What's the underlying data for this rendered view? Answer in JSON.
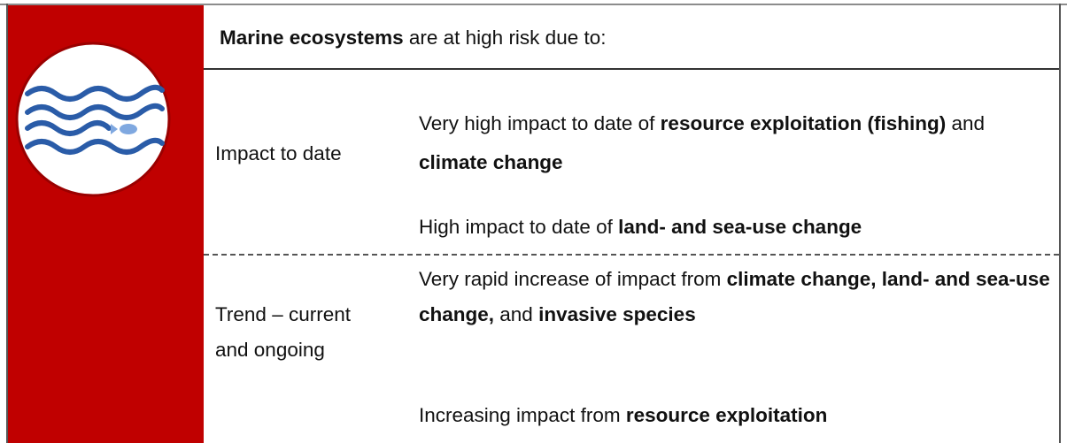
{
  "header": [
    {
      "bold": "Marine ecosystems"
    },
    {
      "text": " are at high risk due to:"
    }
  ],
  "rows": [
    {
      "label": "Impact to date",
      "paragraphs": [
        [
          {
            "text": "Very high impact to date of "
          },
          {
            "bold": "resource exploitation (fishing)"
          },
          {
            "text": " and "
          },
          {
            "bold": "climate change"
          }
        ],
        [
          {
            "text": "High impact to date of "
          },
          {
            "bold": "land- and sea-use change"
          }
        ]
      ]
    },
    {
      "label": "Trend – current and ongoing",
      "paragraphs": [
        [
          {
            "text": "Very rapid increase of impact from "
          },
          {
            "bold": "climate change, land- and sea-use change,"
          },
          {
            "text": " and "
          },
          {
            "bold": "invasive species"
          }
        ],
        [
          {
            "text": "Increasing impact from "
          },
          {
            "bold": "resource exploitation"
          }
        ]
      ]
    }
  ]
}
